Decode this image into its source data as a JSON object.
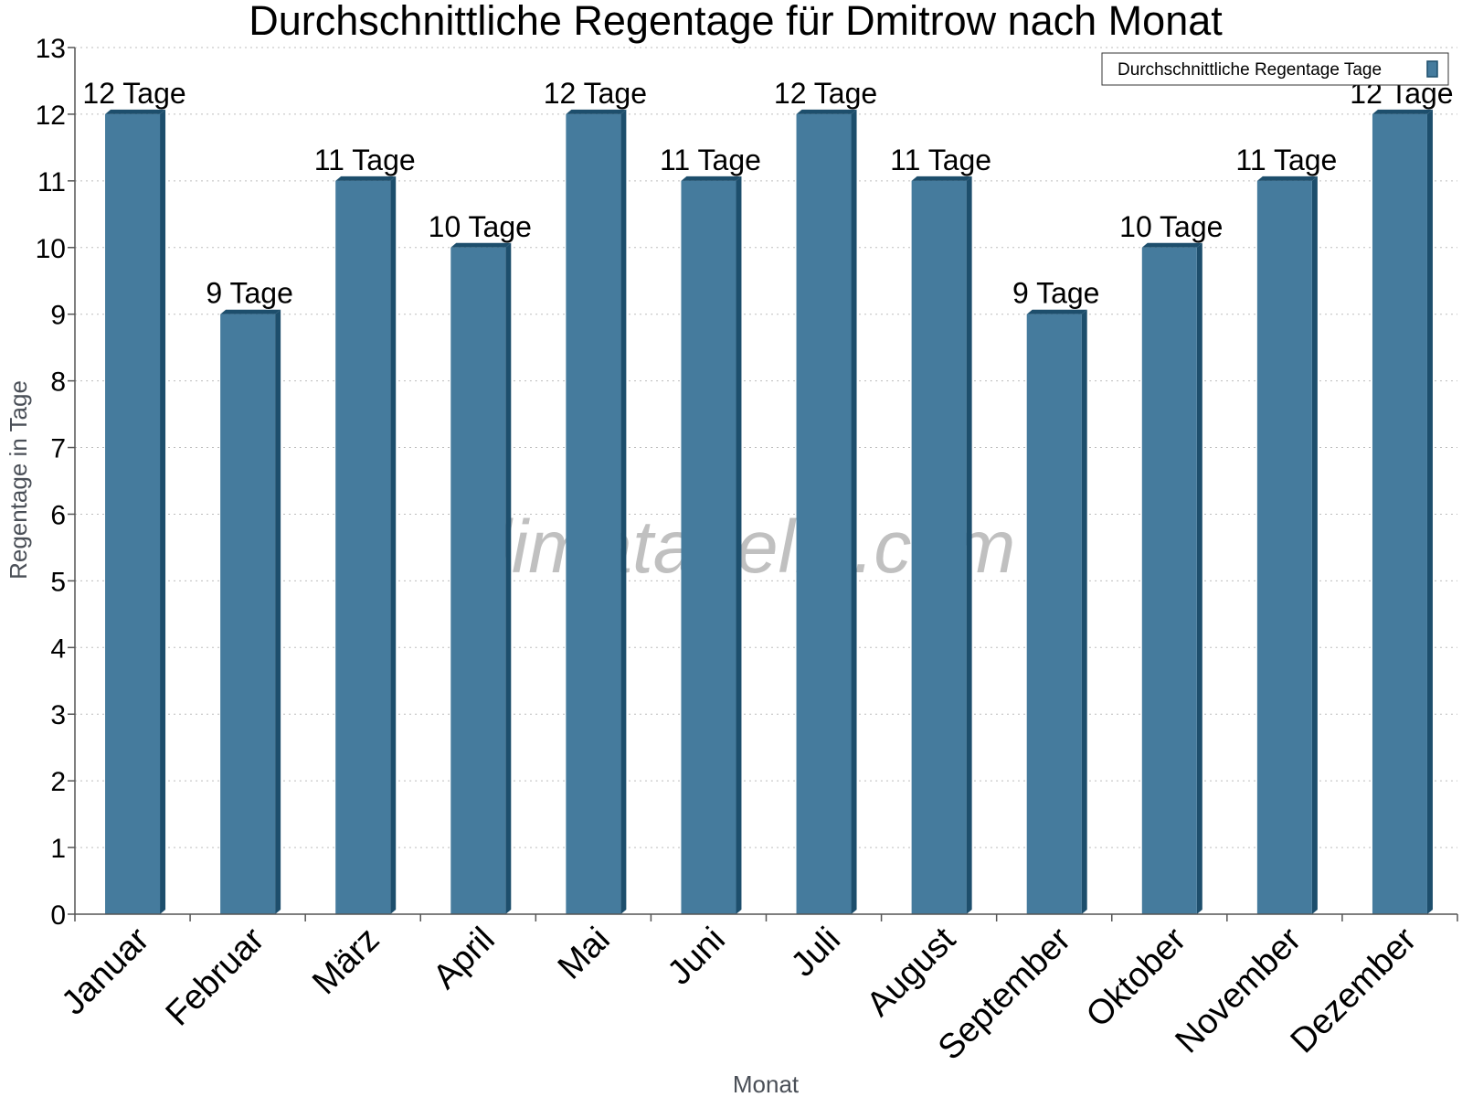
{
  "chart_data": {
    "type": "bar",
    "title": "Durchschnittliche Regentage für Dmitrow nach Monat",
    "xlabel": "Monat",
    "ylabel": "Regentage in Tage",
    "categories": [
      "Januar",
      "Februar",
      "März",
      "April",
      "Mai",
      "Juni",
      "Juli",
      "August",
      "September",
      "Oktober",
      "November",
      "Dezember"
    ],
    "series": [
      {
        "name": "Durchschnittliche Regentage Tage",
        "values": [
          12,
          9,
          11,
          10,
          12,
          11,
          12,
          11,
          9,
          10,
          11,
          12
        ]
      }
    ],
    "data_labels": [
      "12 Tage",
      "9 Tage",
      "11 Tage",
      "10 Tage",
      "12 Tage",
      "11 Tage",
      "12 Tage",
      "11 Tage",
      "9 Tage",
      "10 Tage",
      "11 Tage",
      "12 Tage"
    ],
    "ylim": [
      0,
      13
    ],
    "yticks": [
      "0",
      "1",
      "2",
      "3",
      "4",
      "5",
      "6",
      "7",
      "8",
      "9",
      "10",
      "11",
      "12",
      "13"
    ],
    "grid": true,
    "legend_position": "top-right",
    "watermark": "klimatabelle.com",
    "colors": {
      "bar_front": "#457b9d",
      "bar_side": "#1d4e6c",
      "bar_top": "#1d4e6c"
    }
  }
}
